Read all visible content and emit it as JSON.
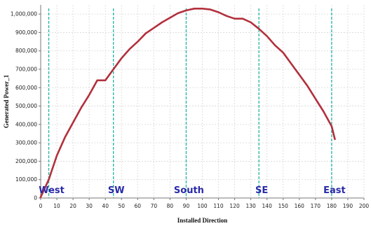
{
  "chart_data": {
    "type": "line",
    "xlabel": "Installed Direction",
    "ylabel": "Generated Power_1",
    "xlim": [
      0,
      200
    ],
    "ylim": [
      0,
      1050000
    ],
    "x_ticks": [
      0,
      10,
      20,
      30,
      40,
      50,
      60,
      70,
      80,
      90,
      100,
      110,
      120,
      130,
      140,
      150,
      160,
      170,
      180,
      190,
      200
    ],
    "y_ticks": [
      0,
      100000,
      200000,
      300000,
      400000,
      500000,
      600000,
      700000,
      800000,
      900000,
      1000000
    ],
    "x_tick_labels": [
      "0",
      "10",
      "20",
      "30",
      "40",
      "50",
      "60",
      "70",
      "80",
      "90",
      "100",
      "110",
      "120",
      "130",
      "140",
      "150",
      "160",
      "170",
      "180",
      "190",
      "200"
    ],
    "y_tick_labels": [
      "0",
      "100,000",
      "200,000",
      "300,000",
      "400,000",
      "500,000",
      "600,000",
      "700,000",
      "800,000",
      "900,000",
      "1,000,000"
    ],
    "grid": true,
    "series": [
      {
        "color": "#b2303c",
        "points": [
          [
            0,
            5000
          ],
          [
            5,
            100000
          ],
          [
            10,
            230000
          ],
          [
            15,
            330000
          ],
          [
            20,
            410000
          ],
          [
            25,
            490000
          ],
          [
            30,
            560000
          ],
          [
            35,
            640000
          ],
          [
            40,
            640000
          ],
          [
            45,
            700000
          ],
          [
            50,
            760000
          ],
          [
            55,
            810000
          ],
          [
            60,
            850000
          ],
          [
            65,
            895000
          ],
          [
            70,
            925000
          ],
          [
            75,
            955000
          ],
          [
            80,
            980000
          ],
          [
            85,
            1005000
          ],
          [
            90,
            1020000
          ],
          [
            95,
            1030000
          ],
          [
            100,
            1030000
          ],
          [
            105,
            1025000
          ],
          [
            110,
            1010000
          ],
          [
            115,
            990000
          ],
          [
            120,
            975000
          ],
          [
            125,
            975000
          ],
          [
            130,
            955000
          ],
          [
            135,
            920000
          ],
          [
            140,
            880000
          ],
          [
            145,
            830000
          ],
          [
            150,
            790000
          ],
          [
            155,
            730000
          ],
          [
            160,
            670000
          ],
          [
            165,
            610000
          ],
          [
            170,
            540000
          ],
          [
            175,
            470000
          ],
          [
            180,
            390000
          ],
          [
            182,
            320000
          ]
        ]
      }
    ],
    "reference_lines": [
      {
        "x": 5,
        "label": "West",
        "color": "#1fb5a0"
      },
      {
        "x": 45,
        "label": "SW",
        "color": "#1fb5a0"
      },
      {
        "x": 90,
        "label": "South",
        "color": "#1fb5a0"
      },
      {
        "x": 135,
        "label": "SE",
        "color": "#1fb5a0"
      },
      {
        "x": 180,
        "label": "East",
        "color": "#1fb5a0"
      }
    ],
    "label_color": "#2a2aa8",
    "grid_color": "#d8d8d8",
    "axis_color": "#777777"
  }
}
